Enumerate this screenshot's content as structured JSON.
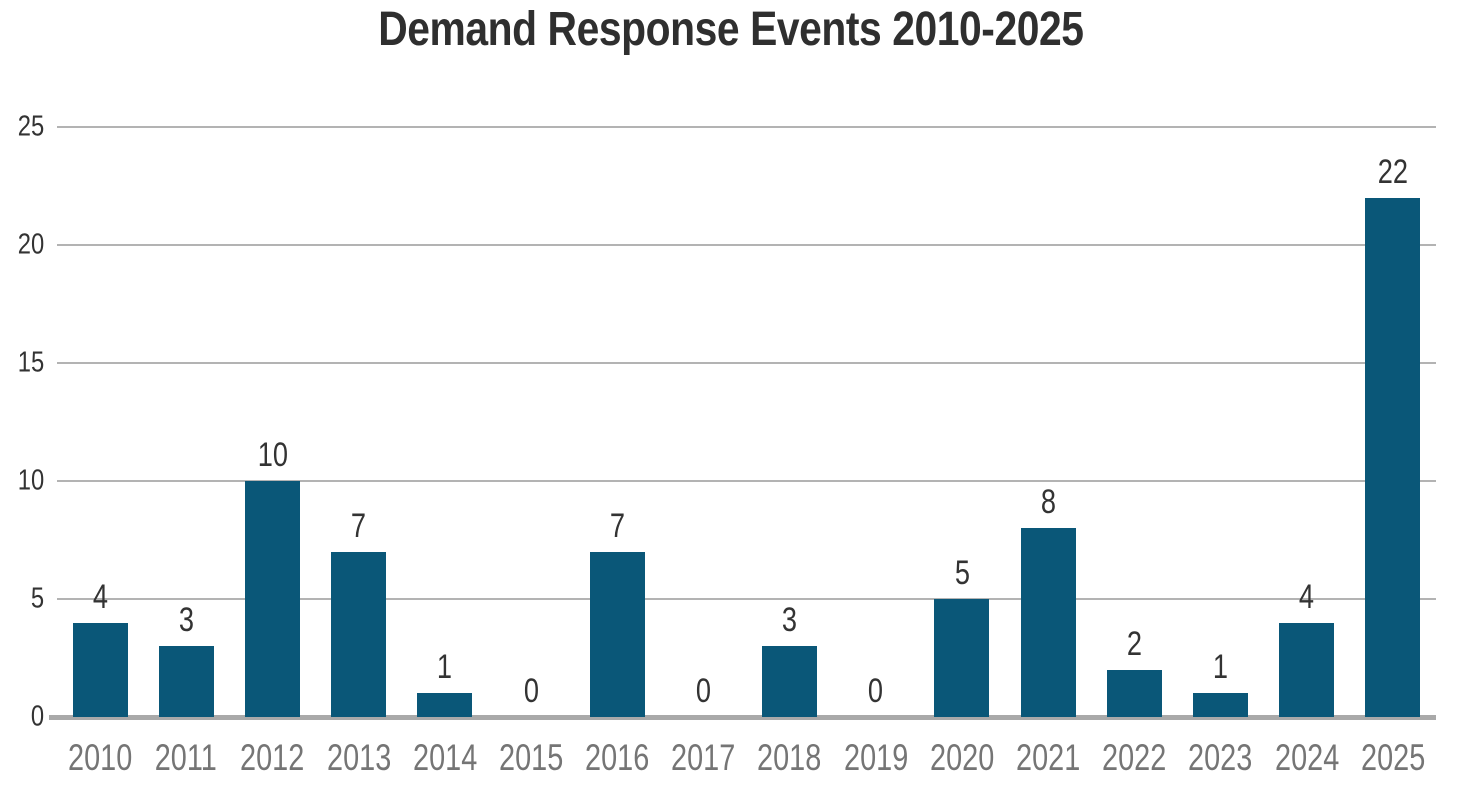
{
  "title": "Demand Response Events 2010-2025",
  "colors": {
    "background": "#ffffff",
    "bar": "#0A5778",
    "gridline": "#b3b3b3",
    "baseline": "#a9a9a9",
    "title_text": "#2f2f2f",
    "y_tick_label": "#333333",
    "value_label": "#333333",
    "x_label": "#757575"
  },
  "chart_data": {
    "type": "bar",
    "title": "Demand Response Events 2010-2025",
    "categories": [
      "2010",
      "2011",
      "2012",
      "2013",
      "2014",
      "2015",
      "2016",
      "2017",
      "2018",
      "2019",
      "2020",
      "2021",
      "2022",
      "2023",
      "2024",
      "2025"
    ],
    "values": [
      4,
      3,
      10,
      7,
      1,
      0,
      7,
      0,
      3,
      0,
      5,
      8,
      2,
      1,
      4,
      22
    ],
    "value_labels": [
      "4",
      "3",
      "10",
      "7",
      "1",
      "0",
      "7",
      "0",
      "3",
      "0",
      "5",
      "8",
      "2",
      "1",
      "4",
      "22"
    ],
    "xlabel": "",
    "ylabel": "",
    "ylim": [
      0,
      25
    ],
    "yticks": [
      0,
      5,
      10,
      15,
      20,
      25
    ],
    "grid": "horizontal-only",
    "legend": "none",
    "value_labels_shown": true
  }
}
